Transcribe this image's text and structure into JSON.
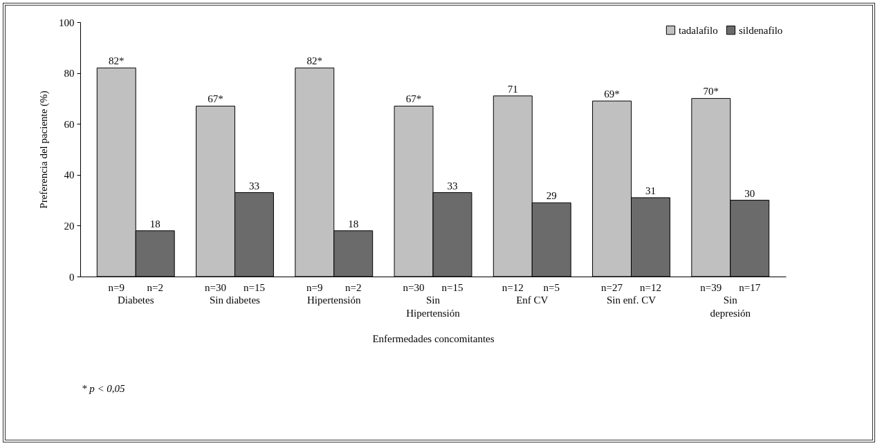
{
  "chart_data": {
    "type": "bar",
    "ylabel": "Preferencia del paciente (%)",
    "xlabel": "Enfermedades concomitantes",
    "categories": [
      "Diabetes",
      "Sin diabetes",
      "Hipertensión",
      "Sin Hipertensión",
      "Enf CV",
      "Sin enf. CV",
      "Sin depresión"
    ],
    "series": [
      {
        "name": "tadalafilo",
        "color": "#c0c0c0",
        "values": [
          82,
          67,
          82,
          67,
          71,
          69,
          70
        ],
        "value_labels": [
          "82*",
          "67*",
          "82*",
          "67*",
          "71",
          "69*",
          "70*"
        ]
      },
      {
        "name": "sildenafilo",
        "color": "#6b6b6b",
        "values": [
          18,
          33,
          18,
          33,
          29,
          31,
          30
        ],
        "value_labels": [
          "18",
          "33",
          "18",
          "33",
          "29",
          "31",
          "30"
        ]
      }
    ],
    "ylim": [
      0,
      100
    ],
    "yticks": [
      0,
      20,
      40,
      60,
      80,
      100
    ],
    "grid": false,
    "legend": "top right",
    "annotations": [
      "n=9",
      "n=2",
      "n=30",
      "n=15",
      "n=9",
      "n=2",
      "n=30",
      "n=15",
      "n=12",
      "n=5",
      "n=27",
      "n=12",
      "n=39",
      "n=17",
      "* p < 0,05"
    ]
  }
}
